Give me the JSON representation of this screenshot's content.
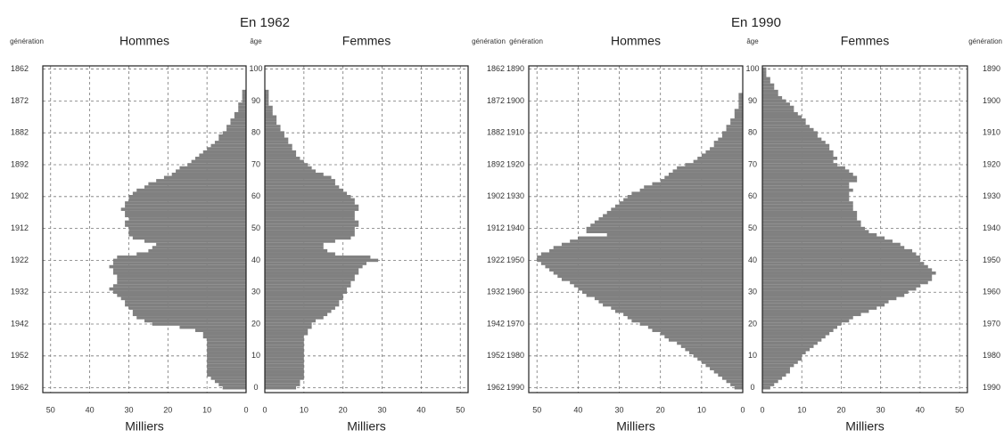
{
  "chart_data": [
    {
      "type": "pyramid",
      "title": "En 1962",
      "xlabel": "Milliers",
      "ylabel": "âge",
      "y2label": "génération",
      "categories": [
        0,
        1,
        2,
        3,
        4,
        5,
        6,
        7,
        8,
        9,
        10,
        11,
        12,
        13,
        14,
        15,
        16,
        17,
        18,
        19,
        20,
        21,
        22,
        23,
        24,
        25,
        26,
        27,
        28,
        29,
        30,
        31,
        32,
        33,
        34,
        35,
        36,
        37,
        38,
        39,
        40,
        41,
        42,
        43,
        44,
        45,
        46,
        47,
        48,
        49,
        50,
        51,
        52,
        53,
        54,
        55,
        56,
        57,
        58,
        59,
        60,
        61,
        62,
        63,
        64,
        65,
        66,
        67,
        68,
        69,
        70,
        71,
        72,
        73,
        74,
        75,
        76,
        77,
        78,
        79,
        80,
        81,
        82,
        83,
        84,
        85,
        86,
        87,
        88,
        89,
        90,
        91,
        92,
        93,
        94,
        95,
        96,
        97,
        98,
        99,
        100
      ],
      "series": [
        {
          "name": "Hommes",
          "color": "#808080",
          "values": [
            6,
            7,
            8,
            9,
            10,
            10,
            10,
            10,
            10,
            10,
            10,
            10,
            10,
            10,
            10,
            10,
            11,
            11,
            13,
            17,
            24,
            26,
            28,
            29,
            29,
            30,
            31,
            31,
            32,
            33,
            34,
            35,
            34,
            33,
            33,
            33,
            34,
            34,
            35,
            34,
            34,
            33,
            28,
            25,
            24,
            23,
            26,
            29,
            30,
            30,
            30,
            31,
            31,
            30,
            31,
            31,
            32,
            31,
            31,
            30,
            30,
            29,
            28,
            26,
            25,
            23,
            21,
            19,
            18,
            17,
            15,
            14,
            13,
            12,
            11,
            10,
            9,
            8,
            7,
            7,
            6,
            5,
            5,
            4,
            4,
            3,
            3,
            2,
            2,
            2,
            1,
            1,
            1,
            1,
            0,
            0,
            0,
            0,
            0,
            0,
            0
          ]
        },
        {
          "name": "Femmes",
          "color": "#808080",
          "values": [
            8,
            9,
            9,
            10,
            10,
            10,
            10,
            10,
            10,
            10,
            10,
            10,
            10,
            10,
            10,
            10,
            10,
            11,
            11,
            12,
            12,
            13,
            15,
            16,
            17,
            18,
            19,
            19,
            20,
            20,
            21,
            21,
            22,
            22,
            23,
            23,
            24,
            24,
            25,
            26,
            29,
            27,
            18,
            16,
            15,
            15,
            18,
            22,
            23,
            23,
            23,
            24,
            24,
            23,
            23,
            23,
            24,
            24,
            23,
            23,
            22,
            21,
            20,
            19,
            18,
            18,
            17,
            15,
            13,
            12,
            11,
            10,
            9,
            8,
            8,
            7,
            7,
            6,
            6,
            5,
            5,
            4,
            4,
            3,
            3,
            3,
            2,
            2,
            2,
            1,
            1,
            1,
            1,
            1,
            0,
            0,
            0,
            0,
            0,
            0,
            0
          ]
        }
      ],
      "xlim": [
        0,
        52
      ],
      "xticks": [
        0,
        10,
        20,
        30,
        40,
        50
      ],
      "ylim": [
        -1.5,
        101
      ],
      "yticks": [
        0,
        10,
        20,
        30,
        40,
        50,
        60,
        70,
        80,
        90,
        100
      ],
      "y2lim": [
        1963.5,
        1861
      ],
      "y2ticks": [
        1962,
        1952,
        1942,
        1932,
        1922,
        1912,
        1902,
        1892,
        1882,
        1872,
        1862
      ],
      "grid": true
    },
    {
      "type": "pyramid",
      "title": "En 1990",
      "xlabel": "Milliers",
      "ylabel": "âge",
      "y2label": "génération",
      "categories": [
        0,
        1,
        2,
        3,
        4,
        5,
        6,
        7,
        8,
        9,
        10,
        11,
        12,
        13,
        14,
        15,
        16,
        17,
        18,
        19,
        20,
        21,
        22,
        23,
        24,
        25,
        26,
        27,
        28,
        29,
        30,
        31,
        32,
        33,
        34,
        35,
        36,
        37,
        38,
        39,
        40,
        41,
        42,
        43,
        44,
        45,
        46,
        47,
        48,
        49,
        50,
        51,
        52,
        53,
        54,
        55,
        56,
        57,
        58,
        59,
        60,
        61,
        62,
        63,
        64,
        65,
        66,
        67,
        68,
        69,
        70,
        71,
        72,
        73,
        74,
        75,
        76,
        77,
        78,
        79,
        80,
        81,
        82,
        83,
        84,
        85,
        86,
        87,
        88,
        89,
        90,
        91,
        92,
        93,
        94,
        95,
        96,
        97,
        98,
        99,
        100
      ],
      "series": [
        {
          "name": "Hommes",
          "color": "#808080",
          "values": [
            2,
            3,
            4,
            5,
            6,
            7,
            8,
            9,
            10,
            11,
            12,
            13,
            14,
            15,
            16,
            18,
            19,
            20,
            22,
            23,
            25,
            27,
            28,
            29,
            31,
            32,
            34,
            35,
            36,
            38,
            39,
            40,
            41,
            42,
            44,
            45,
            46,
            47,
            48,
            49,
            50,
            50,
            49,
            47,
            46,
            44,
            42,
            40,
            33,
            38,
            38,
            37,
            36,
            35,
            34,
            33,
            32,
            31,
            30,
            29,
            28,
            27,
            25,
            24,
            22,
            20,
            19,
            18,
            17,
            16,
            14,
            12,
            11,
            10,
            9,
            8,
            7,
            7,
            6,
            5,
            5,
            4,
            4,
            3,
            3,
            2,
            2,
            2,
            1,
            1,
            1,
            1,
            1,
            0,
            0,
            0,
            0,
            0,
            0,
            0,
            0
          ]
        },
        {
          "name": "Femmes",
          "color": "#808080",
          "values": [
            2,
            3,
            4,
            5,
            6,
            7,
            7,
            8,
            9,
            10,
            10,
            11,
            12,
            13,
            14,
            15,
            16,
            17,
            18,
            19,
            20,
            22,
            23,
            25,
            27,
            29,
            31,
            32,
            34,
            36,
            37,
            39,
            40,
            42,
            43,
            43,
            44,
            43,
            42,
            41,
            40,
            40,
            39,
            38,
            36,
            35,
            33,
            31,
            29,
            27,
            26,
            25,
            25,
            24,
            24,
            24,
            23,
            23,
            23,
            22,
            22,
            22,
            23,
            22,
            22,
            24,
            24,
            23,
            22,
            21,
            19,
            18,
            19,
            18,
            18,
            17,
            17,
            16,
            15,
            14,
            14,
            13,
            12,
            11,
            11,
            10,
            9,
            8,
            8,
            7,
            6,
            5,
            4,
            4,
            3,
            3,
            2,
            2,
            1,
            1,
            1
          ]
        }
      ],
      "xlim": [
        0,
        52
      ],
      "xticks": [
        0,
        10,
        20,
        30,
        40,
        50
      ],
      "ylim": [
        -1.5,
        101
      ],
      "yticks": [
        0,
        10,
        20,
        30,
        40,
        50,
        60,
        70,
        80,
        90,
        100
      ],
      "y2lim": [
        1991.5,
        1889
      ],
      "y2ticks": [
        1990,
        1980,
        1970,
        1960,
        1950,
        1940,
        1930,
        1920,
        1910,
        1900,
        1890
      ],
      "grid": true
    }
  ]
}
